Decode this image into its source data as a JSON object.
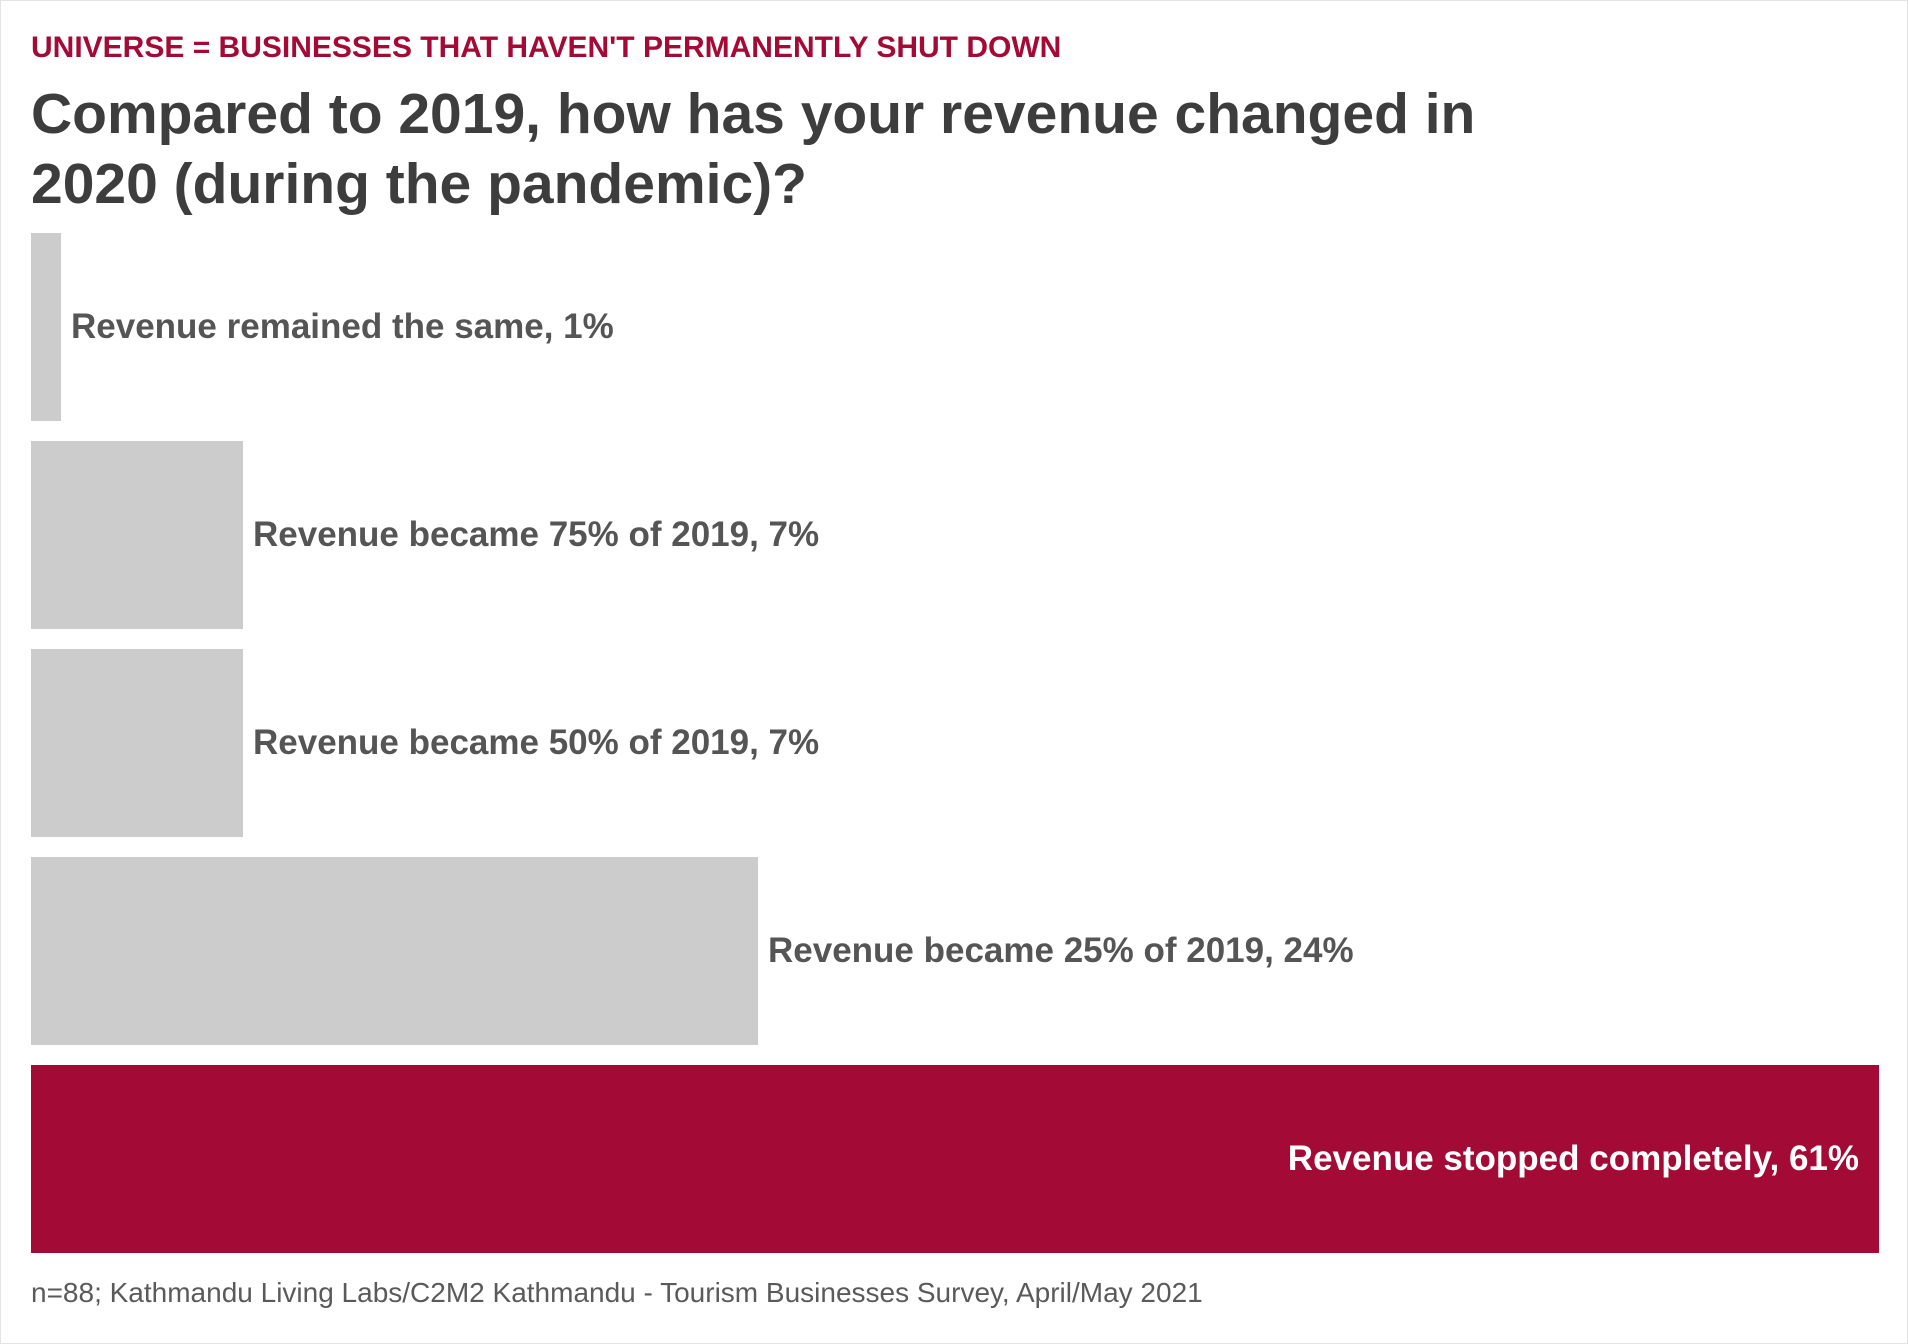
{
  "kicker": "UNIVERSE = BUSINESSES THAT HAVEN'T PERMANENTLY SHUT DOWN",
  "title": "Compared to 2019, how has your revenue changed in 2020 (during the pandemic)?",
  "source": "n=88; Kathmandu Living Labs/C2M2 Kathmandu - Tourism Businesses Survey, April/May 2021",
  "colors": {
    "accent": "#a30a35",
    "bar_default": "#cccccc",
    "label_dark": "#555555",
    "label_light": "#ffffff"
  },
  "chart_data": {
    "type": "bar",
    "orientation": "horizontal",
    "xlim": [
      0,
      61
    ],
    "categories": [
      "Revenue remained the same",
      "Revenue became 75% of 2019",
      "Revenue became 50% of 2019",
      "Revenue became 25% of 2019",
      "Revenue stopped completely"
    ],
    "values": [
      1,
      7,
      7,
      24,
      61
    ],
    "labels": [
      "Revenue remained the same, 1%",
      "Revenue became 75% of 2019, 7%",
      "Revenue became 50% of 2019, 7%",
      "Revenue became 25% of 2019, 24%",
      "Revenue stopped completely, 61%"
    ],
    "highlight_index": 4,
    "grid": false,
    "legend": "none"
  }
}
